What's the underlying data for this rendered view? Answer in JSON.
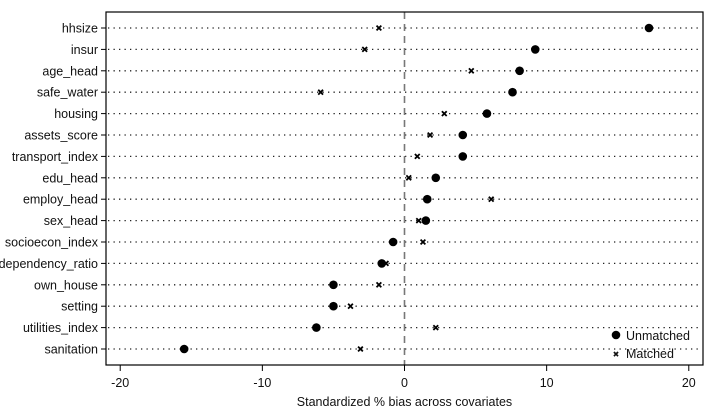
{
  "chart_data": {
    "type": "scatter",
    "orientation": "horizontal-dot-plot",
    "title": "",
    "xlabel": "Standardized % bias across covariates",
    "ylabel": "",
    "xlim": [
      -21,
      21
    ],
    "x_ticks": [
      -20,
      -10,
      0,
      10,
      20
    ],
    "zero_line": "dashed",
    "grid": "dotted row guides",
    "legend_position": "bottom-right",
    "categories": [
      "hhsize",
      "insur",
      "age_head",
      "safe_water",
      "housing",
      "assets_score",
      "transport_index",
      "edu_head",
      "employ_head",
      "sex_head",
      "socioecon_index",
      "dependency_ratio",
      "own_house",
      "setting",
      "utilities_index",
      "sanitation"
    ],
    "series": [
      {
        "name": "Unmatched",
        "marker": "circle",
        "values": [
          17.2,
          9.2,
          8.1,
          7.6,
          5.8,
          4.1,
          4.1,
          2.2,
          1.6,
          1.5,
          -0.8,
          -1.6,
          -5.0,
          -5.0,
          -6.2,
          -15.5
        ]
      },
      {
        "name": "Matched",
        "marker": "x",
        "values": [
          -1.8,
          -2.8,
          4.7,
          -5.9,
          2.8,
          1.8,
          0.9,
          0.3,
          6.1,
          1.0,
          1.3,
          -1.3,
          -1.8,
          -3.8,
          2.2,
          -3.1
        ]
      }
    ]
  }
}
